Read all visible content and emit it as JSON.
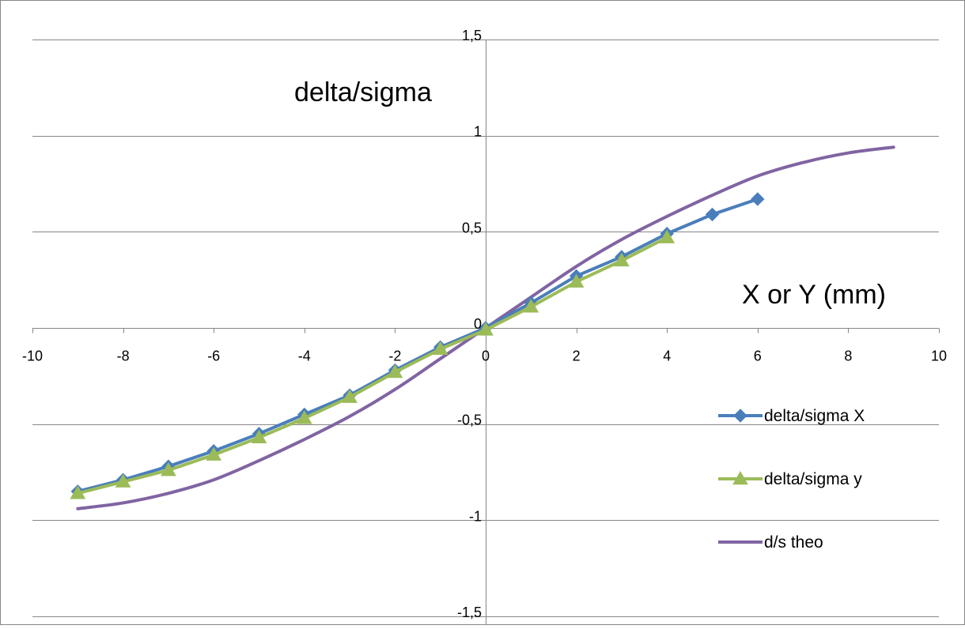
{
  "chart_data": {
    "type": "line",
    "title": "",
    "xlabel": "X or Y (mm)",
    "ylabel": "delta/sigma",
    "xlim": [
      -10,
      10
    ],
    "ylim": [
      -1.5,
      1.5
    ],
    "x_ticks": [
      -10,
      -8,
      -6,
      -4,
      -2,
      0,
      2,
      4,
      6,
      8,
      10
    ],
    "x_tick_labels": [
      "-10",
      "-8",
      "-6",
      "-4",
      "-2",
      "0",
      "2",
      "4",
      "6",
      "8",
      "10"
    ],
    "y_ticks": [
      1.5,
      1,
      0.5,
      0,
      -0.5,
      -1,
      -1.5
    ],
    "y_tick_labels": [
      "1,5",
      "1",
      "0,5",
      "0",
      "-0,5",
      "-1",
      "-1,5"
    ],
    "grid": "horizontal",
    "legend_position": "right",
    "series": [
      {
        "name": "delta/sigma X",
        "color": "#4a7ebb",
        "marker": "diamond",
        "x": [
          -9,
          -8,
          -7,
          -6,
          -5,
          -4,
          -3,
          -2,
          -1,
          0,
          1,
          2,
          3,
          4,
          5,
          6
        ],
        "y": [
          -0.85,
          -0.79,
          -0.72,
          -0.64,
          -0.55,
          -0.45,
          -0.35,
          -0.22,
          -0.1,
          0.0,
          0.13,
          0.27,
          0.37,
          0.49,
          0.59,
          0.67
        ]
      },
      {
        "name": "delta/sigma y",
        "color": "#9bbb59",
        "marker": "triangle",
        "x": [
          -9,
          -8,
          -7,
          -6,
          -5,
          -4,
          -3,
          -2,
          -1,
          0,
          1,
          2,
          3,
          4
        ],
        "y": [
          -0.86,
          -0.8,
          -0.74,
          -0.66,
          -0.57,
          -0.47,
          -0.36,
          -0.23,
          -0.11,
          -0.01,
          0.11,
          0.24,
          0.35,
          0.47
        ]
      },
      {
        "name": "d/s theo",
        "color": "#8064a2",
        "marker": "none",
        "x": [
          -9,
          -8,
          -7,
          -6,
          -5,
          -4,
          -3,
          -2,
          -1,
          0,
          1,
          2,
          3,
          4,
          5,
          6,
          7,
          8,
          9
        ],
        "y": [
          -0.94,
          -0.91,
          -0.86,
          -0.79,
          -0.69,
          -0.58,
          -0.46,
          -0.32,
          -0.16,
          0.0,
          0.16,
          0.32,
          0.46,
          0.58,
          0.69,
          0.79,
          0.86,
          0.91,
          0.94
        ]
      }
    ]
  }
}
